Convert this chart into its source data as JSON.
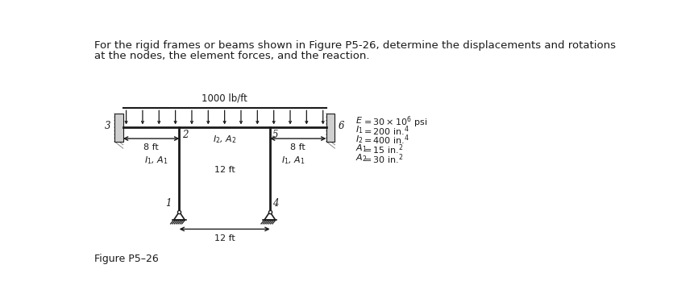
{
  "title_line1": "For the rigid frames or beams shown in Figure P5-26, determine the displacements and rotations",
  "title_line2": "at the nodes, the element forces, and the reaction.",
  "figure_label": "Figure P5–26",
  "load_label": "1000 lb/ft",
  "properties_lines": [
    [
      "E",
      " = 30 × 10",
      "6",
      " psi"
    ],
    [
      "I",
      "1",
      " = 200 in.",
      "4"
    ],
    [
      "I",
      "2",
      " = 400 in.",
      "4"
    ],
    [
      "A",
      "1",
      " = 15 in.",
      "2"
    ],
    [
      "A",
      "2",
      " = 30 in.",
      "2"
    ]
  ],
  "bg_color": "#ffffff",
  "frame_color": "#1a1a1a",
  "text_color": "#1a1a1a",
  "gray_color": "#888888"
}
